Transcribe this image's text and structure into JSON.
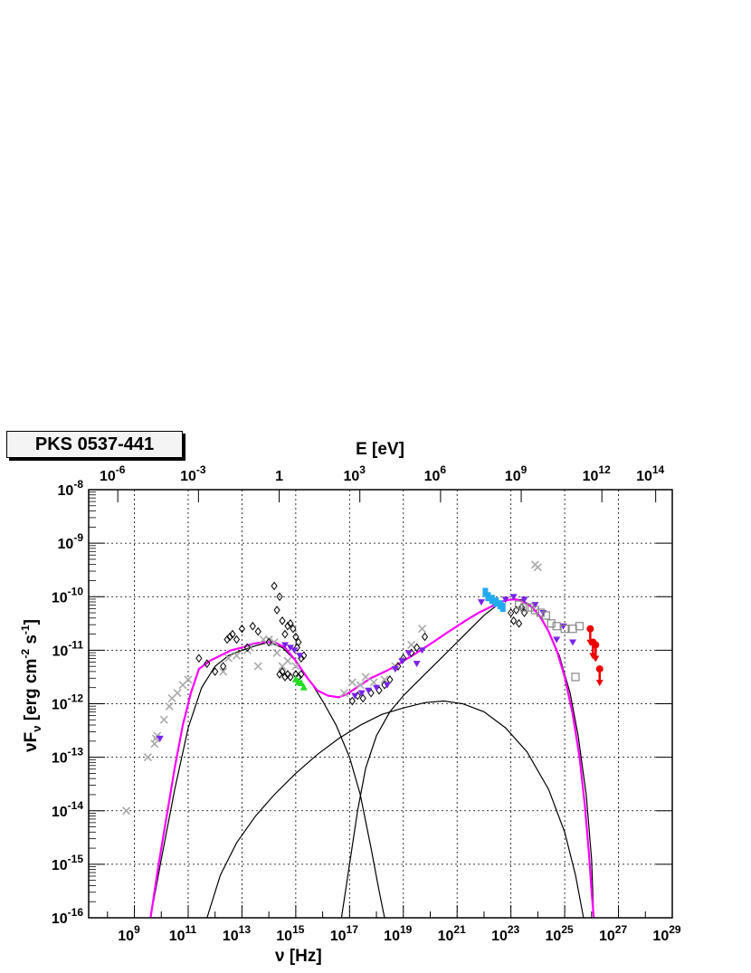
{
  "source_label": "PKS 0537-441",
  "chart_data": {
    "type": "scatter",
    "log_x": true,
    "log_y": true,
    "xlabel": "ν [Hz]",
    "ylabel": "νF",
    "ylabel_sub": "ν",
    "ylabel_unit_pre": "[erg cm",
    "ylabel_unit_sup1": "-2",
    "ylabel_unit_mid": " s",
    "ylabel_unit_sup2": "-1",
    "ylabel_unit_post": "]",
    "top_axis_label": "E [eV]",
    "xlim_log": [
      7.3,
      29.0
    ],
    "ylim_log": [
      -16,
      -8
    ],
    "grid": true,
    "x_ticks": [
      {
        "exp": 9,
        "label_base": "10",
        "label_exp": "9"
      },
      {
        "exp": 11,
        "label_base": "10",
        "label_exp": "11"
      },
      {
        "exp": 13,
        "label_base": "10",
        "label_exp": "13"
      },
      {
        "exp": 15,
        "label_base": "10",
        "label_exp": "15"
      },
      {
        "exp": 17,
        "label_base": "10",
        "label_exp": "17"
      },
      {
        "exp": 19,
        "label_base": "10",
        "label_exp": "19"
      },
      {
        "exp": 21,
        "label_base": "10",
        "label_exp": "21"
      },
      {
        "exp": 23,
        "label_base": "10",
        "label_exp": "23"
      },
      {
        "exp": 25,
        "label_base": "10",
        "label_exp": "25"
      },
      {
        "exp": 27,
        "label_base": "10",
        "label_exp": "27"
      },
      {
        "exp": 29,
        "label_base": "10",
        "label_exp": "29"
      }
    ],
    "y_ticks": [
      {
        "exp": -8,
        "label_base": "10",
        "label_exp": "-8"
      },
      {
        "exp": -9,
        "label_base": "10",
        "label_exp": "-9"
      },
      {
        "exp": -10,
        "label_base": "10",
        "label_exp": "-10"
      },
      {
        "exp": -11,
        "label_base": "10",
        "label_exp": "-11"
      },
      {
        "exp": -12,
        "label_base": "10",
        "label_exp": "-12"
      },
      {
        "exp": -13,
        "label_base": "10",
        "label_exp": "-13"
      },
      {
        "exp": -14,
        "label_base": "10",
        "label_exp": "-14"
      },
      {
        "exp": -15,
        "label_base": "10",
        "label_exp": "-15"
      },
      {
        "exp": -16,
        "label_base": "10",
        "label_exp": "-16"
      }
    ],
    "top_ticks": [
      {
        "exp_ev": -6,
        "label_base": "10",
        "label_exp": "-6"
      },
      {
        "exp_ev": -3,
        "label_base": "10",
        "label_exp": "-3"
      },
      {
        "exp_ev": 0,
        "label_base": "1",
        "label_exp": ""
      },
      {
        "exp_ev": 3,
        "label_base": "10",
        "label_exp": "3"
      },
      {
        "exp_ev": 6,
        "label_base": "10",
        "label_exp": "6"
      },
      {
        "exp_ev": 9,
        "label_base": "10",
        "label_exp": "9"
      },
      {
        "exp_ev": 12,
        "label_base": "10",
        "label_exp": "12"
      },
      {
        "exp_ev": 14,
        "label_base": "10",
        "label_exp": "14"
      }
    ],
    "colors": {
      "model_total": "#ff00ff",
      "components": "#000000",
      "archival": "#aaaaaa",
      "black_data": "#000000",
      "purple_data": "#7a22ee",
      "green_data": "#22dd22",
      "cyan_data": "#22aaee",
      "gray_squares": "#888888",
      "red_upper_limits": "#ee0000"
    },
    "model_total": {
      "x": [
        9.6,
        9.9,
        10.2,
        10.5,
        10.8,
        11.1,
        11.4,
        11.8,
        12.2,
        12.6,
        13.0,
        13.4,
        13.8,
        14.2,
        14.6,
        15.0,
        15.4,
        15.8,
        16.2,
        16.6,
        16.9,
        17.2,
        17.5,
        17.8,
        18.1,
        18.4,
        18.7,
        19.0,
        19.4,
        19.8,
        20.2,
        20.6,
        21.0,
        21.4,
        21.8,
        22.2,
        22.6,
        22.9,
        23.2,
        23.5,
        23.8,
        24.1,
        24.4,
        24.7,
        25.0,
        25.3,
        25.55,
        25.75,
        25.9,
        26.0,
        26.08
      ],
      "y": [
        -16.0,
        -15.0,
        -14.1,
        -13.2,
        -12.4,
        -11.8,
        -11.35,
        -11.2,
        -11.1,
        -11.0,
        -10.95,
        -10.88,
        -10.85,
        -10.85,
        -10.95,
        -11.2,
        -11.5,
        -11.75,
        -11.85,
        -11.88,
        -11.82,
        -11.72,
        -11.62,
        -11.52,
        -11.45,
        -11.38,
        -11.3,
        -11.2,
        -11.08,
        -10.95,
        -10.82,
        -10.68,
        -10.55,
        -10.42,
        -10.3,
        -10.2,
        -10.1,
        -10.06,
        -10.05,
        -10.1,
        -10.2,
        -10.38,
        -10.65,
        -11.0,
        -11.5,
        -12.2,
        -13.0,
        -13.9,
        -14.8,
        -15.5,
        -16.0
      ]
    },
    "component_synchrotron": {
      "x": [
        9.6,
        10.0,
        10.5,
        11.0,
        11.5,
        12.0,
        12.5,
        13.0,
        13.5,
        14.0,
        14.5,
        15.0,
        15.5,
        16.0,
        16.5,
        17.0,
        17.4,
        17.8,
        18.1,
        18.3
      ],
      "y": [
        -16.0,
        -14.9,
        -13.6,
        -12.45,
        -11.7,
        -11.3,
        -11.1,
        -11.0,
        -10.92,
        -10.85,
        -10.95,
        -11.2,
        -11.55,
        -11.95,
        -12.4,
        -13.0,
        -13.7,
        -14.7,
        -15.5,
        -16.0
      ]
    },
    "component_ssc": {
      "x": [
        11.7,
        12.2,
        12.8,
        13.5,
        14.2,
        15.0,
        15.8,
        16.6,
        17.4,
        18.2,
        19.0,
        19.8,
        20.5,
        21.2,
        22.0,
        22.8,
        23.6,
        24.4,
        25.0,
        25.4,
        25.7
      ],
      "y": [
        -16.0,
        -15.2,
        -14.6,
        -14.1,
        -13.7,
        -13.3,
        -12.95,
        -12.65,
        -12.4,
        -12.2,
        -12.08,
        -11.98,
        -11.95,
        -12.0,
        -12.15,
        -12.45,
        -12.9,
        -13.6,
        -14.4,
        -15.2,
        -16.0
      ]
    },
    "component_ec": {
      "x": [
        16.7,
        17.0,
        17.3,
        17.6,
        18.0,
        18.5,
        19.0,
        19.5,
        20.0,
        20.5,
        21.0,
        21.5,
        22.0,
        22.5,
        22.8,
        23.1,
        23.4,
        23.7,
        24.0,
        24.4,
        24.8,
        25.2,
        25.5,
        25.8,
        26.0,
        26.08
      ],
      "y": [
        -16.0,
        -15.0,
        -14.0,
        -13.2,
        -12.6,
        -12.15,
        -11.85,
        -11.6,
        -11.35,
        -11.1,
        -10.85,
        -10.6,
        -10.35,
        -10.15,
        -10.07,
        -10.04,
        -10.06,
        -10.15,
        -10.32,
        -10.65,
        -11.1,
        -11.8,
        -12.6,
        -13.7,
        -14.9,
        -16.0
      ]
    },
    "archival_points": {
      "x": [
        8.7,
        9.5,
        9.75,
        9.8,
        9.85,
        10.1,
        10.3,
        10.4,
        10.6,
        10.8,
        11.0,
        12.3,
        12.5,
        12.8,
        13.2,
        13.3,
        13.6,
        13.8,
        14.0,
        14.2,
        14.3,
        14.5,
        14.7,
        15.0,
        16.8,
        17.1,
        17.4,
        17.6,
        17.9,
        18.3,
        18.7,
        19.3,
        19.7,
        23.9,
        24.0
      ],
      "y": [
        -14.0,
        -13.0,
        -12.75,
        -12.65,
        -12.6,
        -12.3,
        -12.05,
        -11.9,
        -11.8,
        -11.65,
        -11.55,
        -11.4,
        -11.15,
        -11.1,
        -11.0,
        -10.95,
        -11.3,
        -10.8,
        -10.8,
        -10.85,
        -11.05,
        -11.3,
        -11.2,
        -11.3,
        -11.8,
        -11.6,
        -11.65,
        -11.5,
        -11.6,
        -11.55,
        -11.3,
        -10.9,
        -10.6,
        -9.4,
        -9.45
      ]
    },
    "black_diamonds": {
      "x": [
        11.4,
        11.7,
        12.0,
        12.3,
        12.45,
        12.55,
        12.65,
        12.8,
        13.0,
        13.2,
        13.4,
        13.6,
        14.0,
        14.2,
        14.3,
        14.4,
        14.5,
        14.6,
        14.7,
        14.8,
        14.9,
        15.0,
        15.05,
        15.1,
        15.2,
        15.3,
        14.4,
        14.5,
        14.6,
        14.7,
        14.8,
        15.0,
        15.1,
        15.2,
        17.1,
        17.3,
        17.5,
        17.8,
        18.1,
        18.3,
        18.5,
        18.8,
        19.0,
        19.3,
        19.5,
        19.8,
        23.0,
        23.1,
        23.2,
        23.3,
        23.4,
        23.5
      ],
      "y": [
        -11.15,
        -11.25,
        -11.4,
        -11.3,
        -10.8,
        -10.75,
        -10.7,
        -10.8,
        -10.6,
        -10.95,
        -10.55,
        -10.65,
        -10.85,
        -9.8,
        -10.25,
        -10.0,
        -10.45,
        -10.7,
        -10.55,
        -10.5,
        -10.6,
        -10.75,
        -10.95,
        -10.85,
        -11.15,
        -11.1,
        -11.45,
        -11.4,
        -11.5,
        -11.45,
        -11.5,
        -11.45,
        -11.5,
        -11.45,
        -11.95,
        -11.85,
        -11.9,
        -11.8,
        -11.75,
        -11.65,
        -11.55,
        -11.3,
        -11.15,
        -11.05,
        -10.95,
        -10.75,
        -10.3,
        -10.45,
        -10.25,
        -10.5,
        -10.2,
        -10.3
      ]
    },
    "purple_points": {
      "x": [
        9.95,
        14.6,
        14.8,
        14.95,
        15.15,
        17.2,
        17.45,
        17.7,
        18.0,
        18.4,
        18.7,
        18.95,
        19.2,
        19.5,
        19.7,
        21.9,
        22.4,
        22.8,
        23.1,
        23.5,
        23.9,
        24.2,
        24.7,
        24.95,
        25.3
      ],
      "y": [
        -12.65,
        -10.9,
        -10.95,
        -11.0,
        -11.1,
        -11.85,
        -11.8,
        -11.75,
        -11.7,
        -11.65,
        -11.35,
        -11.2,
        -11.05,
        -11.25,
        -11.0,
        -10.1,
        -10.15,
        -10.05,
        -10.0,
        -10.05,
        -10.15,
        -10.3,
        -10.8,
        -10.55,
        -10.85
      ]
    },
    "green_points": {
      "x": [
        15.0,
        15.1,
        15.2,
        15.3
      ],
      "y": [
        -11.55,
        -11.6,
        -11.62,
        -11.7
      ]
    },
    "cyan_points": {
      "x": [
        22.05,
        22.15,
        22.3,
        22.45,
        22.6,
        22.7
      ],
      "y": [
        -9.92,
        -10.0,
        -10.05,
        -10.1,
        -10.15,
        -10.2
      ]
    },
    "gray_squares": {
      "x": [
        23.3,
        23.5,
        23.7,
        23.9,
        24.1,
        24.3,
        24.5,
        24.7,
        25.0,
        25.3,
        25.4,
        25.55
      ],
      "y": [
        -10.15,
        -10.2,
        -10.2,
        -10.25,
        -10.3,
        -10.35,
        -10.5,
        -10.55,
        -10.6,
        -10.6,
        -11.5,
        -10.55
      ]
    },
    "red_upper_limits": {
      "x": [
        25.95,
        26.05,
        26.15,
        26.3
      ],
      "y": [
        -10.6,
        -10.85,
        -10.9,
        -11.35
      ]
    }
  }
}
